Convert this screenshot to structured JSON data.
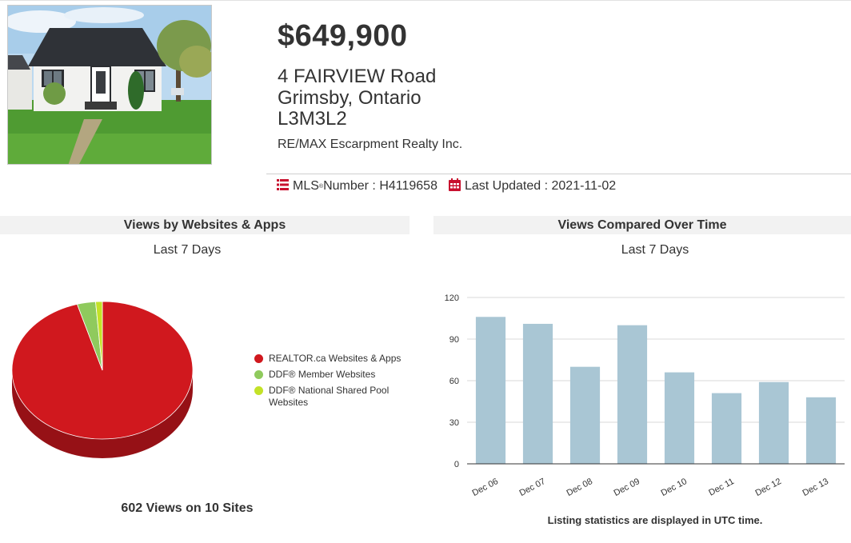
{
  "listing": {
    "price": "$649,900",
    "address_line1": "4 FAIRVIEW Road",
    "address_line2": "Grimsby, Ontario",
    "address_line3": "L3M3L2",
    "brokerage": "RE/MAX Escarpment Realty Inc."
  },
  "info_bar": {
    "mls_label": "MLS",
    "mls_reg": "®",
    "mls_number_label": " Number : H4119658",
    "last_updated": "Last Updated : 2021-11-02"
  },
  "icons": {
    "list": "list-icon",
    "calendar": "calendar-icon",
    "photo": "house-photo"
  },
  "colors": {
    "accent": "#c8102e",
    "bar": "#a9c6d4",
    "pie_red": "#d0181e",
    "pie_green": "#8fca5d",
    "pie_lime": "#c3e228"
  },
  "websites_panel": {
    "title": "Views by Websites & Apps",
    "subtitle": "Last 7 Days",
    "total": "602 Views on 10 Sites"
  },
  "time_panel": {
    "title": "Views Compared Over Time",
    "subtitle": "Last 7 Days",
    "note": "Listing statistics are displayed in UTC time."
  },
  "chart_data": [
    {
      "type": "pie",
      "series": [
        {
          "name": "REALTOR.ca Websites & Apps",
          "value": 95.5,
          "color": "#d0181e"
        },
        {
          "name": "DDF® Member Websites",
          "value": 3.3,
          "color": "#8fca5d"
        },
        {
          "name": "DDF® National Shared Pool Websites",
          "value": 1.2,
          "color": "#c3e228"
        }
      ],
      "legend": "right"
    },
    {
      "type": "bar",
      "categories": [
        "Dec 06",
        "Dec 07",
        "Dec 08",
        "Dec 09",
        "Dec 10",
        "Dec 11",
        "Dec 12",
        "Dec 13"
      ],
      "values": [
        106,
        101,
        70,
        100,
        66,
        51,
        59,
        48
      ],
      "ylim": [
        0,
        120
      ],
      "yticks": [
        0,
        30,
        60,
        90,
        120
      ],
      "grid": true,
      "color": "#a9c6d4"
    }
  ]
}
